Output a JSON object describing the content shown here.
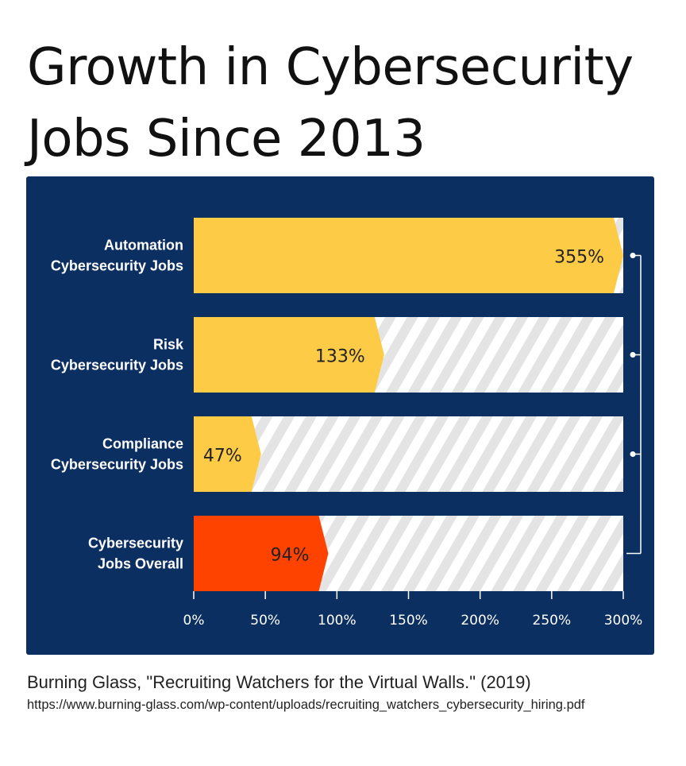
{
  "title_line1": "Growth in Cybersecurity",
  "title_line2": "Jobs Since 2013",
  "source": "Burning Glass, \"Recruiting Watchers for the Virtual Walls.\" (2019)",
  "url": "https://www.burning-glass.com/wp-content/uploads/recruiting_watchers_cybersecurity_hiring.pdf",
  "colors": {
    "background_panel": "#0c2f62",
    "bar_highlight": "#fdcb45",
    "bar_overall": "#fe4200",
    "track": "#ffffff",
    "stripe": "#e4e4e4"
  },
  "chart_data": {
    "type": "bar",
    "orientation": "horizontal",
    "categories": [
      [
        "Automation",
        "Cybersecurity Jobs"
      ],
      [
        "Risk",
        "Cybersecurity Jobs"
      ],
      [
        "Compliance",
        "Cybersecurity Jobs"
      ],
      [
        "Cybersecurity",
        "Jobs Overall"
      ]
    ],
    "values": [
      355,
      133,
      47,
      94
    ],
    "value_labels": [
      "355%",
      "133%",
      "47%",
      "94%"
    ],
    "bar_colors": [
      "#fdcb45",
      "#fdcb45",
      "#fdcb45",
      "#fe4200"
    ],
    "xlim": [
      0,
      300
    ],
    "xticks": [
      0,
      50,
      100,
      150,
      200,
      250,
      300
    ],
    "xtick_labels": [
      "0%",
      "50%",
      "100%",
      "150%",
      "200%",
      "250%",
      "300%"
    ],
    "grid": false
  }
}
